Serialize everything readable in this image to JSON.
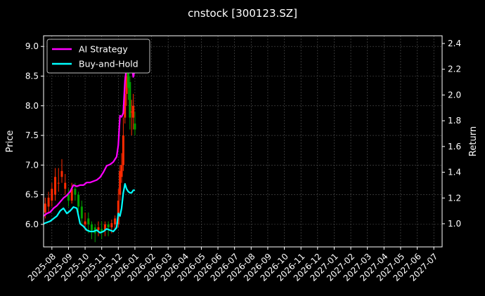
{
  "chart_data": {
    "type": "line",
    "title": "cnstock [300123.SZ]",
    "ylabel": "Price",
    "y2label": "Return",
    "ylim": [
      5.62,
      9.18
    ],
    "y2lim": [
      0.82,
      2.46
    ],
    "yticks": [
      6.0,
      6.5,
      7.0,
      7.5,
      8.0,
      8.5,
      9.0
    ],
    "y2ticks": [
      1.0,
      1.2,
      1.4,
      1.6,
      1.8,
      2.0,
      2.2,
      2.4
    ],
    "x_categories": [
      "2025-08",
      "2025-09",
      "2025-10",
      "2025-11",
      "2025-12",
      "2026-01",
      "2026-02",
      "2026-03",
      "2026-04",
      "2026-05",
      "2026-06",
      "2026-07",
      "2026-08",
      "2026-09",
      "2026-10",
      "2026-11",
      "2026-12",
      "2027-01",
      "2027-02",
      "2027-03",
      "2027-04",
      "2027-05",
      "2027-06",
      "2027-07"
    ],
    "xlim": [
      -0.5,
      23.5
    ],
    "grid": true,
    "legend_position": "upper-left",
    "colors": {
      "ai": "#ff00ff",
      "bh": "#00ffff",
      "up": "#ff2a00",
      "down": "#00a000",
      "grid": "#555555",
      "background": "#000000"
    },
    "series": [
      {
        "name": "AI Strategy",
        "axis": "right",
        "x": [
          -0.5,
          -0.3,
          -0.1,
          0.1,
          0.3,
          0.5,
          0.7,
          0.9,
          1.1,
          1.3,
          1.5,
          1.7,
          1.9,
          2.1,
          2.3,
          2.5,
          2.7,
          2.9,
          3.1,
          3.3,
          3.5,
          3.7,
          3.9,
          4.0,
          4.1,
          4.2,
          4.3,
          4.4,
          4.5,
          4.6,
          4.7,
          4.8,
          4.9,
          5.0
        ],
        "values": [
          1.06,
          1.08,
          1.09,
          1.12,
          1.14,
          1.17,
          1.2,
          1.22,
          1.25,
          1.3,
          1.29,
          1.3,
          1.3,
          1.32,
          1.32,
          1.33,
          1.34,
          1.36,
          1.4,
          1.45,
          1.46,
          1.48,
          1.52,
          1.61,
          1.84,
          1.83,
          1.86,
          2.11,
          2.22,
          2.3,
          2.38,
          2.24,
          2.14,
          2.2
        ]
      },
      {
        "name": "Buy-and-Hold",
        "axis": "right",
        "x": [
          -0.5,
          -0.3,
          -0.1,
          0.1,
          0.3,
          0.5,
          0.7,
          0.9,
          1.1,
          1.3,
          1.5,
          1.7,
          1.9,
          2.1,
          2.3,
          2.5,
          2.7,
          2.9,
          3.1,
          3.3,
          3.5,
          3.7,
          3.9,
          4.0,
          4.1,
          4.2,
          4.3,
          4.4,
          4.5,
          4.6,
          4.7,
          4.8,
          4.9,
          5.0
        ],
        "values": [
          1.0,
          1.01,
          1.02,
          1.04,
          1.06,
          1.1,
          1.12,
          1.08,
          1.1,
          1.13,
          1.12,
          1.0,
          0.98,
          0.95,
          0.94,
          0.94,
          0.95,
          0.93,
          0.94,
          0.96,
          0.95,
          0.94,
          0.97,
          1.08,
          1.06,
          1.12,
          1.24,
          1.31,
          1.27,
          1.25,
          1.24,
          1.24,
          1.26,
          1.26
        ]
      }
    ],
    "candles": {
      "axis": "left",
      "x": [
        -0.4,
        -0.2,
        0.0,
        0.2,
        0.4,
        0.6,
        0.8,
        1.0,
        1.2,
        1.4,
        1.6,
        1.8,
        2.0,
        2.2,
        2.4,
        2.6,
        2.8,
        3.0,
        3.2,
        3.4,
        3.6,
        3.8,
        4.0,
        4.1,
        4.2,
        4.3,
        4.4,
        4.5,
        4.6,
        4.7,
        4.8,
        4.9,
        5.0
      ],
      "open": [
        6.2,
        6.3,
        6.4,
        6.5,
        6.7,
        6.8,
        6.6,
        6.5,
        6.4,
        6.6,
        6.5,
        6.3,
        6.0,
        6.1,
        6.0,
        5.95,
        5.9,
        5.92,
        5.9,
        6.0,
        5.95,
        6.0,
        6.0,
        6.5,
        6.8,
        7.0,
        7.8,
        8.2,
        8.6,
        8.4,
        7.9,
        7.8,
        7.7
      ],
      "close": [
        6.35,
        6.45,
        6.6,
        6.8,
        6.7,
        6.9,
        6.7,
        6.4,
        6.6,
        6.5,
        6.3,
        6.1,
        6.05,
        6.0,
        5.9,
        5.85,
        5.95,
        5.88,
        6.0,
        5.95,
        6.02,
        6.1,
        6.4,
        6.9,
        7.0,
        7.5,
        8.2,
        8.5,
        8.3,
        7.8,
        7.9,
        8.0,
        7.6
      ],
      "high": [
        6.45,
        6.55,
        6.7,
        6.95,
        6.95,
        7.1,
        6.85,
        6.6,
        6.7,
        6.7,
        6.55,
        6.4,
        6.2,
        6.2,
        6.05,
        6.0,
        6.05,
        6.05,
        6.05,
        6.05,
        6.08,
        6.15,
        6.6,
        7.0,
        7.2,
        7.8,
        8.5,
        8.8,
        8.75,
        8.5,
        8.1,
        8.2,
        7.9
      ],
      "low": [
        6.1,
        6.2,
        6.3,
        6.4,
        6.55,
        6.7,
        6.5,
        6.3,
        6.35,
        6.4,
        6.2,
        6.0,
        5.9,
        5.85,
        5.75,
        5.7,
        5.8,
        5.75,
        5.8,
        5.8,
        5.85,
        5.9,
        5.95,
        6.4,
        6.7,
        6.9,
        7.7,
        8.0,
        8.1,
        7.6,
        7.5,
        7.6,
        7.5
      ]
    }
  }
}
